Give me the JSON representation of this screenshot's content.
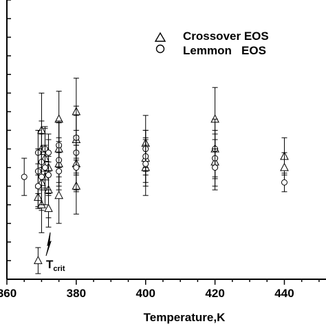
{
  "chart_data": {
    "type": "scatter",
    "xlabel": "Temperature,K",
    "ylabel": "",
    "xlim": [
      360,
      452
    ],
    "ylim": [
      0,
      15
    ],
    "x_ticks": [
      "360",
      "380",
      "400",
      "420",
      "440"
    ],
    "x_minor_step": 5,
    "y_tick_count": 15,
    "tick_labels_y": false,
    "grid": false,
    "legend_position": "top-right",
    "annotation": {
      "main": "T",
      "sub": "crit",
      "at_x": 372
    },
    "series": [
      {
        "name": "Crossover EOS",
        "marker": "triangle",
        "points": [
          {
            "x": 369,
            "y": 1.0,
            "err": 0.7
          },
          {
            "x": 369,
            "y": 4.4,
            "err": 0.5
          },
          {
            "x": 370,
            "y": 8.0,
            "err": 2.0
          },
          {
            "x": 370,
            "y": 7.0,
            "err": 1.5
          },
          {
            "x": 370,
            "y": 5.2,
            "err": 1.5
          },
          {
            "x": 370,
            "y": 4.0,
            "err": 1.5
          },
          {
            "x": 371,
            "y": 6.5,
            "err": 1.6
          },
          {
            "x": 371,
            "y": 5.5,
            "err": 1.5
          },
          {
            "x": 372,
            "y": 6.0,
            "err": 1.5
          },
          {
            "x": 372,
            "y": 4.8,
            "err": 1.5
          },
          {
            "x": 372,
            "y": 3.8,
            "err": 1.0
          },
          {
            "x": 375,
            "y": 8.6,
            "err": 1.5
          },
          {
            "x": 375,
            "y": 7.0,
            "err": 1.5
          },
          {
            "x": 375,
            "y": 4.5,
            "err": 1.5
          },
          {
            "x": 375,
            "y": 6.2,
            "err": 1.2
          },
          {
            "x": 380,
            "y": 9.0,
            "err": 1.8
          },
          {
            "x": 380,
            "y": 7.5,
            "err": 1.8
          },
          {
            "x": 380,
            "y": 6.2,
            "err": 1.5
          },
          {
            "x": 380,
            "y": 5.0,
            "err": 1.5
          },
          {
            "x": 400,
            "y": 7.3,
            "err": 1.5
          },
          {
            "x": 400,
            "y": 6.5,
            "err": 1.5
          },
          {
            "x": 400,
            "y": 6.0,
            "err": 1.5
          },
          {
            "x": 420,
            "y": 8.6,
            "err": 1.7
          },
          {
            "x": 420,
            "y": 7.0,
            "err": 1.6
          },
          {
            "x": 420,
            "y": 6.3,
            "err": 1.5
          },
          {
            "x": 440,
            "y": 6.6,
            "err": 1.0
          },
          {
            "x": 440,
            "y": 6.0,
            "err": 0.8
          }
        ]
      },
      {
        "name": "Lemmon   EOS",
        "marker": "circle",
        "points": [
          {
            "x": 365,
            "y": 5.5,
            "err": 1.0
          },
          {
            "x": 369,
            "y": 6.8,
            "err": 1.2
          },
          {
            "x": 369,
            "y": 5.8,
            "err": 1.2
          },
          {
            "x": 369,
            "y": 5.0,
            "err": 1.2
          },
          {
            "x": 370,
            "y": 6.3,
            "err": 1.5
          },
          {
            "x": 370,
            "y": 5.5,
            "err": 1.5
          },
          {
            "x": 371,
            "y": 7.0,
            "err": 1.2
          },
          {
            "x": 371,
            "y": 6.0,
            "err": 1.2
          },
          {
            "x": 372,
            "y": 6.8,
            "err": 1.0
          },
          {
            "x": 372,
            "y": 5.6,
            "err": 1.0
          },
          {
            "x": 375,
            "y": 7.2,
            "err": 1.2
          },
          {
            "x": 375,
            "y": 6.4,
            "err": 1.2
          },
          {
            "x": 375,
            "y": 5.8,
            "err": 1.0
          },
          {
            "x": 380,
            "y": 7.6,
            "err": 1.2
          },
          {
            "x": 380,
            "y": 6.8,
            "err": 1.2
          },
          {
            "x": 380,
            "y": 6.0,
            "err": 1.2
          },
          {
            "x": 400,
            "y": 7.0,
            "err": 1.0
          },
          {
            "x": 400,
            "y": 6.6,
            "err": 1.0
          },
          {
            "x": 400,
            "y": 6.2,
            "err": 1.0
          },
          {
            "x": 420,
            "y": 7.0,
            "err": 1.0
          },
          {
            "x": 420,
            "y": 6.5,
            "err": 1.0
          },
          {
            "x": 420,
            "y": 6.0,
            "err": 1.0
          },
          {
            "x": 440,
            "y": 5.2,
            "err": 0.5
          }
        ]
      }
    ]
  }
}
